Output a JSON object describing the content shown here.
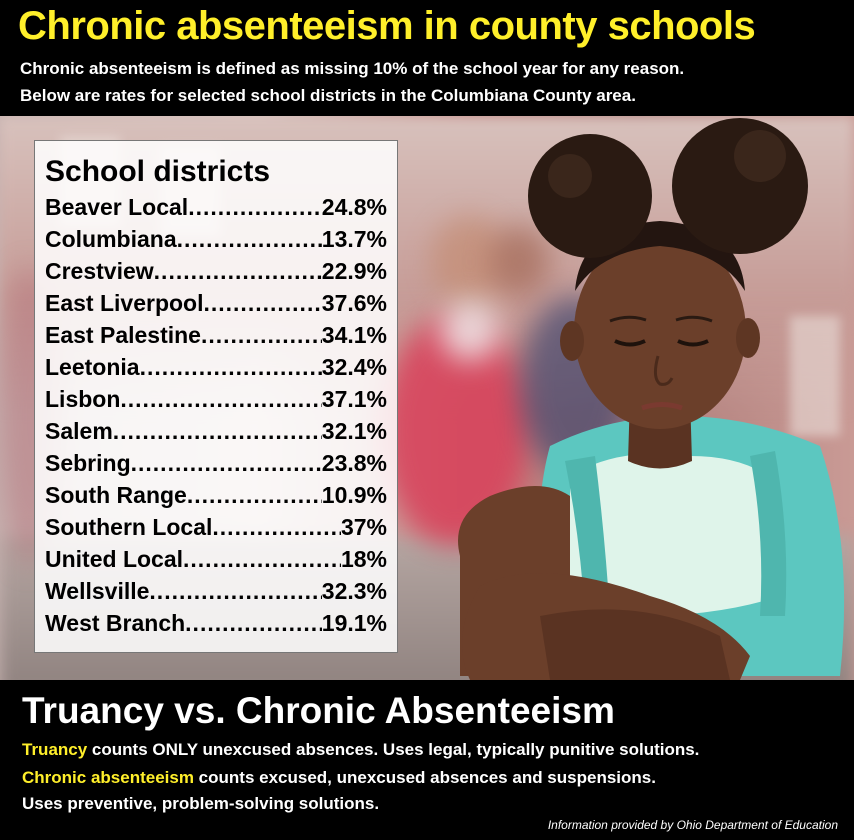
{
  "header": {
    "title": "Chronic absenteeism in county schools",
    "subtitle_line1": "Chronic absenteeism is defined as missing 10% of the school year for any reason.",
    "subtitle_line2": "Below are rates for selected school districts in the Columbiana County area."
  },
  "table": {
    "title": "School districts",
    "rows": [
      {
        "name": "Beaver Local",
        "value": "24.8%"
      },
      {
        "name": "Columbiana ",
        "value": "13.7%"
      },
      {
        "name": "Crestview ",
        "value": "22.9%"
      },
      {
        "name": "East Liverpool",
        "value": "37.6%"
      },
      {
        "name": "East Palestine ",
        "value": "34.1%"
      },
      {
        "name": "Leetonia ",
        "value": "32.4%"
      },
      {
        "name": "Lisbon",
        "value": "37.1%"
      },
      {
        "name": "Salem",
        "value": "32.1%"
      },
      {
        "name": "Sebring",
        "value": "23.8%"
      },
      {
        "name": "South Range",
        "value": "10.9%"
      },
      {
        "name": "Southern Local ",
        "value": "37%"
      },
      {
        "name": "United Local ",
        "value": "18%"
      },
      {
        "name": "Wellsville ",
        "value": "32.3%"
      },
      {
        "name": "West Branch",
        "value": "19.1%"
      }
    ]
  },
  "footer": {
    "title": "Truancy vs. Chronic Absenteeism",
    "truancy_term": "Truancy",
    "truancy_text": " counts ONLY unexcused absences. Uses legal, typically punitive solutions.",
    "chronic_term": "Chronic absenteeism",
    "chronic_text": " counts excused, unexcused absences and suspensions.",
    "chronic_text2": "Uses preventive, problem-solving solutions.",
    "source": "Information provided by Ohio Department of Education"
  },
  "colors": {
    "accent_yellow": "#ffef2a",
    "background": "#000000",
    "shirt_mint": "#dff4ea",
    "backpack_teal": "#5cc7c0"
  }
}
